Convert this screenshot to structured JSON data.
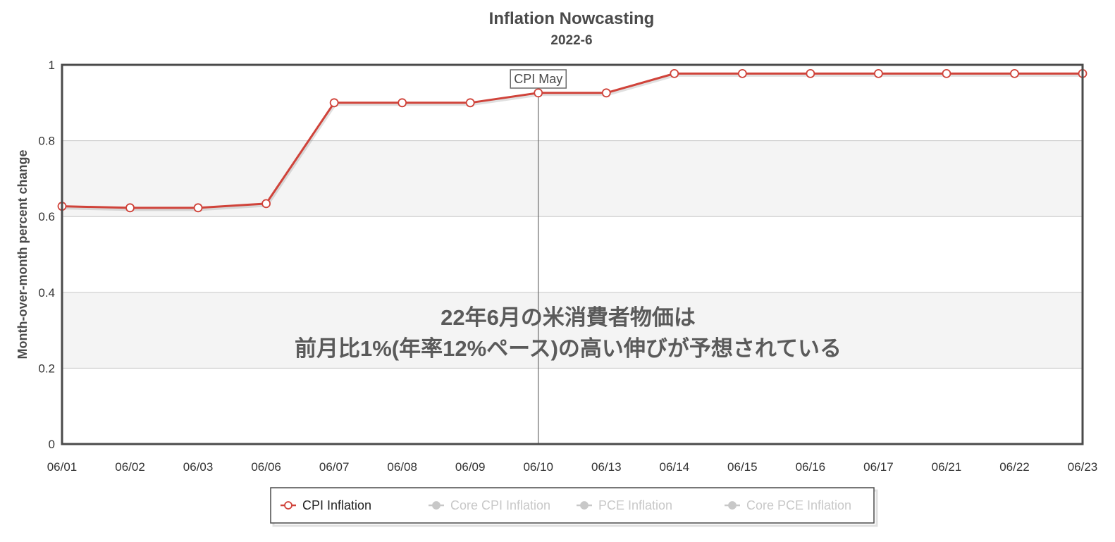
{
  "chart_data": {
    "type": "line",
    "title": "Inflation Nowcasting",
    "subtitle": "2022-6",
    "ylabel": "Month-over-month percent change",
    "xlabel": "",
    "ylim": [
      0,
      1
    ],
    "yticks": [
      "0",
      "0.2",
      "0.4",
      "0.6",
      "0.8",
      "1"
    ],
    "categories": [
      "06/01",
      "06/02",
      "06/03",
      "06/06",
      "06/07",
      "06/08",
      "06/09",
      "06/10",
      "06/13",
      "06/14",
      "06/15",
      "06/16",
      "06/17",
      "06/21",
      "06/22",
      "06/23"
    ],
    "series": [
      {
        "name": "CPI Inflation",
        "color": "#d0433a",
        "values": [
          0.627,
          0.623,
          0.623,
          0.634,
          0.9,
          0.9,
          0.9,
          0.926,
          0.926,
          0.977,
          0.977,
          0.977,
          0.977,
          0.977,
          0.977,
          0.977
        ]
      }
    ],
    "vertical_marker": {
      "category": "06/10",
      "label": "CPI May"
    },
    "annotation_lines": [
      "22年6月の米消費者物価は",
      "前月比1%(年率12%ペース)の高い伸びが予想されている"
    ],
    "legend": {
      "position": "bottom",
      "items": [
        {
          "label": "CPI Inflation",
          "active": true,
          "color": "#d0433a"
        },
        {
          "label": "Core CPI Inflation",
          "active": false,
          "color": "#c8c8c8"
        },
        {
          "label": "PCE Inflation",
          "active": false,
          "color": "#c8c8c8"
        },
        {
          "label": "Core PCE Inflation",
          "active": false,
          "color": "#c8c8c8"
        }
      ]
    },
    "grid": true,
    "alternating_bands": true
  }
}
